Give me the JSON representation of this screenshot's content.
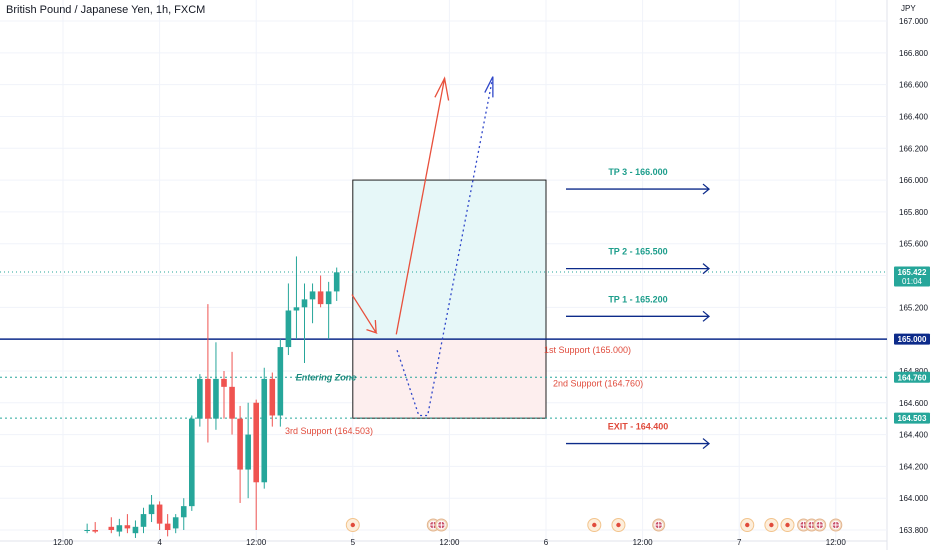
{
  "header": {
    "title": "British Pound / Japanese Yen, 1h, FXCM"
  },
  "colors": {
    "up": "#26a69a",
    "down": "#ef5350",
    "navy": "#0d2b8a",
    "teal_line": "#26a69a",
    "teal_text": "#1b8a7e",
    "red_text": "#e04b3c",
    "tp_text": "#1e9e8c",
    "box_profit": "#e6f7f8",
    "box_loss": "#fdeeee",
    "arrow_red": "#e8503c",
    "arrow_dotted": "#2f47c9"
  },
  "chart_data": {
    "type": "candlestick",
    "symbol": "British Pound / Japanese Yen",
    "interval": "1h",
    "source": "FXCM",
    "currency_label": "JPY",
    "ylim": [
      163.75,
      167.08
    ],
    "y_ticks": [
      163.8,
      164.0,
      164.2,
      164.4,
      164.6,
      164.8,
      165.0,
      165.2,
      165.4,
      165.6,
      165.8,
      166.0,
      166.2,
      166.4,
      166.6,
      166.8,
      167.0
    ],
    "y_tick_labels": [
      "163.800",
      "164.000",
      "164.200",
      "164.400",
      "164.600",
      "164.800",
      "165.000",
      "165.200",
      "165.400",
      "165.600",
      "165.800",
      "166.000",
      "166.200",
      "166.400",
      "166.600",
      "166.800",
      "167.000"
    ],
    "x_ticks": [
      {
        "label": ":00",
        "slot": -8.5
      },
      {
        "label": "12:00",
        "slot": 0
      },
      {
        "label": "4",
        "slot": 12
      },
      {
        "label": "12:00",
        "slot": 24
      },
      {
        "label": "5",
        "slot": 36
      },
      {
        "label": "12:00",
        "slot": 48
      },
      {
        "label": "6",
        "slot": 60
      },
      {
        "label": "12:00",
        "slot": 72
      },
      {
        "label": "7",
        "slot": 84
      },
      {
        "label": "12:00",
        "slot": 96
      }
    ],
    "candles": [
      {
        "slot": 3,
        "o": 163.8,
        "h": 163.84,
        "l": 163.78,
        "c": 163.8
      },
      {
        "slot": 4,
        "o": 163.8,
        "h": 163.85,
        "l": 163.78,
        "c": 163.79
      },
      {
        "slot": 6,
        "o": 163.82,
        "h": 163.88,
        "l": 163.78,
        "c": 163.8
      },
      {
        "slot": 7,
        "o": 163.79,
        "h": 163.87,
        "l": 163.76,
        "c": 163.83
      },
      {
        "slot": 8,
        "o": 163.83,
        "h": 163.9,
        "l": 163.78,
        "c": 163.81
      },
      {
        "slot": 9,
        "o": 163.78,
        "h": 163.86,
        "l": 163.75,
        "c": 163.82
      },
      {
        "slot": 10,
        "o": 163.82,
        "h": 163.94,
        "l": 163.78,
        "c": 163.9
      },
      {
        "slot": 11,
        "o": 163.9,
        "h": 164.02,
        "l": 163.85,
        "c": 163.96
      },
      {
        "slot": 12,
        "o": 163.96,
        "h": 163.98,
        "l": 163.8,
        "c": 163.84
      },
      {
        "slot": 13,
        "o": 163.84,
        "h": 163.9,
        "l": 163.76,
        "c": 163.8
      },
      {
        "slot": 14,
        "o": 163.81,
        "h": 163.9,
        "l": 163.78,
        "c": 163.88
      },
      {
        "slot": 15,
        "o": 163.88,
        "h": 164.0,
        "l": 163.8,
        "c": 163.95
      },
      {
        "slot": 16,
        "o": 163.95,
        "h": 164.52,
        "l": 163.92,
        "c": 164.5
      },
      {
        "slot": 17,
        "o": 164.5,
        "h": 164.78,
        "l": 164.45,
        "c": 164.75
      },
      {
        "slot": 18,
        "o": 164.75,
        "h": 165.22,
        "l": 164.35,
        "c": 164.5
      },
      {
        "slot": 19,
        "o": 164.5,
        "h": 164.98,
        "l": 164.43,
        "c": 164.75
      },
      {
        "slot": 20,
        "o": 164.75,
        "h": 164.8,
        "l": 164.5,
        "c": 164.7
      },
      {
        "slot": 21,
        "o": 164.7,
        "h": 164.92,
        "l": 164.4,
        "c": 164.5
      },
      {
        "slot": 22,
        "o": 164.5,
        "h": 164.58,
        "l": 163.97,
        "c": 164.18
      },
      {
        "slot": 23,
        "o": 164.18,
        "h": 164.6,
        "l": 164.0,
        "c": 164.4
      },
      {
        "slot": 24,
        "o": 164.6,
        "h": 164.62,
        "l": 163.8,
        "c": 164.1
      },
      {
        "slot": 25,
        "o": 164.1,
        "h": 164.82,
        "l": 164.06,
        "c": 164.75
      },
      {
        "slot": 26,
        "o": 164.75,
        "h": 164.79,
        "l": 164.45,
        "c": 164.52
      },
      {
        "slot": 27,
        "o": 164.52,
        "h": 165.0,
        "l": 164.45,
        "c": 164.95
      },
      {
        "slot": 28,
        "o": 164.95,
        "h": 165.35,
        "l": 164.9,
        "c": 165.18
      },
      {
        "slot": 29,
        "o": 165.18,
        "h": 165.52,
        "l": 165.0,
        "c": 165.2
      },
      {
        "slot": 30,
        "o": 165.2,
        "h": 165.35,
        "l": 164.85,
        "c": 165.25
      },
      {
        "slot": 31,
        "o": 165.25,
        "h": 165.35,
        "l": 165.1,
        "c": 165.3
      },
      {
        "slot": 32,
        "o": 165.3,
        "h": 165.4,
        "l": 165.2,
        "c": 165.22
      },
      {
        "slot": 33,
        "o": 165.22,
        "h": 165.36,
        "l": 165.0,
        "c": 165.3
      },
      {
        "slot": 34,
        "o": 165.3,
        "h": 165.45,
        "l": 165.24,
        "c": 165.42
      }
    ],
    "price_tags": [
      {
        "value": 165.422,
        "text": "165.422",
        "sub": "01:04",
        "bg": "#26a69a"
      },
      {
        "value": 165.0,
        "text": "165.000",
        "sub": "",
        "bg": "#0d2b8a"
      },
      {
        "value": 164.76,
        "text": "164.760",
        "sub": "",
        "bg": "#26a69a"
      },
      {
        "value": 164.503,
        "text": "164.503",
        "sub": "",
        "bg": "#26a69a"
      }
    ],
    "annotations": {
      "entering_zone": "Entering Zone",
      "support_1": "1st Support (165.000)",
      "support_2": "2nd Support (164.760)",
      "support_3": "3rd Support (164.503)",
      "tp3": "TP 3 - 166.000",
      "tp2": "TP 2 - 165.500",
      "tp1": "TP 1 - 165.200",
      "exit": "EXIT - 164.400"
    },
    "event_markers": {
      "single_slots": [
        36,
        66,
        69,
        85,
        88,
        90
      ],
      "group_slots": [
        46,
        47,
        74,
        92,
        93,
        94,
        96
      ]
    },
    "grid": true
  }
}
